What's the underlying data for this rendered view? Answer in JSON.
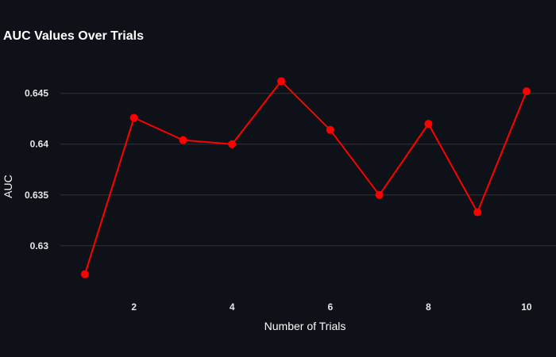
{
  "chart_data": {
    "type": "line",
    "title": "AUC Values Over Trials",
    "xlabel": "Number of Trials",
    "ylabel": "AUC",
    "x": [
      1,
      2,
      3,
      4,
      5,
      6,
      7,
      8,
      9,
      10
    ],
    "series": [
      {
        "values": [
          0.6272,
          0.6426,
          0.6404,
          0.64,
          0.6462,
          0.6414,
          0.635,
          0.642,
          0.6333,
          0.6452
        ],
        "color": "#ff0000"
      }
    ],
    "x_ticks": [
      2,
      4,
      6,
      8,
      10
    ],
    "x_tick_labels": [
      "2",
      "4",
      "6",
      "8",
      "10"
    ],
    "y_ticks": [
      0.63,
      0.635,
      0.64,
      0.645
    ],
    "y_tick_labels": [
      "0.63",
      "0.635",
      "0.64",
      "0.645"
    ],
    "xlim": [
      0.5,
      10.6
    ],
    "ylim": [
      0.6253,
      0.6481
    ],
    "grid": true,
    "background": "#0e1117",
    "grid_color": "#31333c"
  }
}
